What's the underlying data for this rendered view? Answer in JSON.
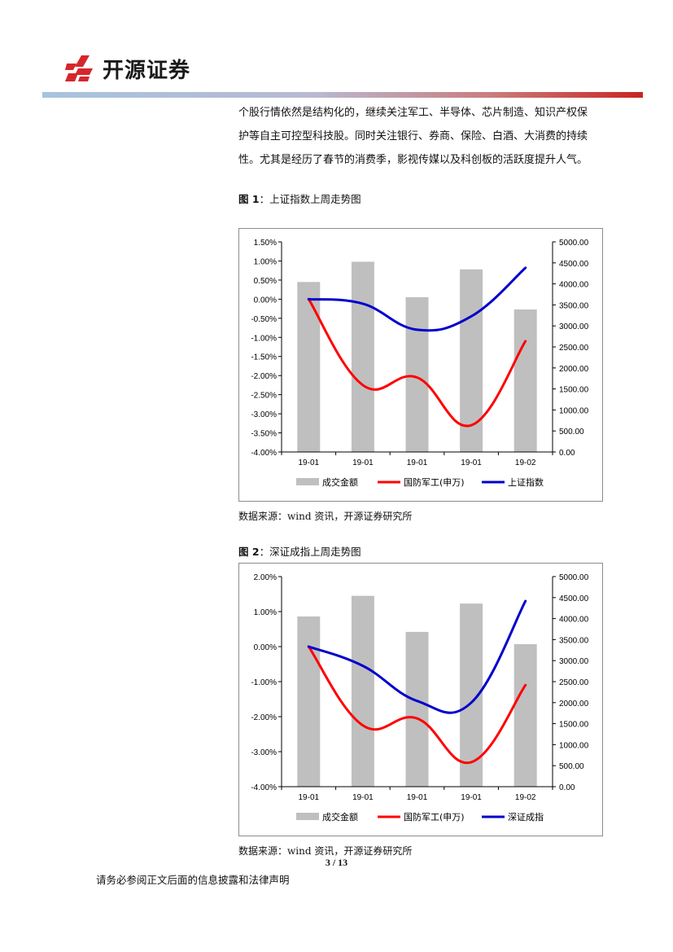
{
  "header": {
    "company": "开源证券",
    "colors": {
      "logo_red": "#d6262b",
      "bar_left": "#a7c3de",
      "bar_right": "#c9241f"
    }
  },
  "body": {
    "lines": [
      "个股行情依然是结构化的，继续关注军工、半导体、芯片制造、知识产权保",
      "护等自主可控型科技股。同时关注银行、券商、保险、白酒、大消费的持续",
      "性。尤其是经历了春节的消费季，影视传媒以及科创板的活跃度提升人气。"
    ]
  },
  "figure1": {
    "label": "图 1",
    "title": "：上证指数上周走势图",
    "source": "数据来源：wind 资讯，开源证券研究所"
  },
  "figure2": {
    "label": "图 2",
    "title": "：深证成指上周走势图",
    "source": "数据来源：wind 资讯，开源证券研究所"
  },
  "footer": {
    "page": "3 / 13",
    "disclaimer": "请务必参阅正文后面的信息披露和法律声明"
  },
  "chart_data": [
    {
      "type": "bar",
      "categories": [
        "19-01",
        "19-01",
        "19-01",
        "19-01",
        "19-02"
      ],
      "left_axis": {
        "ticks": [
          "1.50%",
          "1.00%",
          "0.50%",
          "0.00%",
          "-0.50%",
          "-1.00%",
          "-1.50%",
          "-2.00%",
          "-2.50%",
          "-3.00%",
          "-3.50%",
          "-4.00%"
        ],
        "ylim": [
          -4.0,
          1.5
        ]
      },
      "right_axis": {
        "ticks": [
          "5000.00",
          "4500.00",
          "4000.00",
          "3500.00",
          "3000.00",
          "2500.00",
          "2000.00",
          "1500.00",
          "1000.00",
          "500.00",
          "0.00"
        ],
        "ylim": [
          0,
          5000
        ]
      },
      "series": [
        {
          "name": "成交金额",
          "kind": "bar",
          "axis": "left",
          "color": "#bfbfbf",
          "values": [
            0.45,
            0.98,
            0.05,
            0.78,
            -0.27
          ]
        },
        {
          "name": "国防军工(申万)",
          "kind": "line",
          "axis": "left",
          "color": "#ff0000",
          "values": [
            0.0,
            -2.25,
            -2.05,
            -3.3,
            -1.1
          ]
        },
        {
          "name": "上证指数",
          "kind": "line",
          "axis": "left",
          "color": "#0000cc",
          "values": [
            0.0,
            -0.12,
            -0.8,
            -0.45,
            0.82
          ]
        }
      ],
      "legend": "bottom"
    },
    {
      "type": "bar",
      "categories": [
        "19-01",
        "19-01",
        "19-01",
        "19-01",
        "19-02"
      ],
      "left_axis": {
        "ticks": [
          "2.00%",
          "1.00%",
          "0.00%",
          "-1.00%",
          "-2.00%",
          "-3.00%",
          "-4.00%"
        ],
        "ylim": [
          -4.0,
          2.0
        ]
      },
      "right_axis": {
        "ticks": [
          "5000.00",
          "4500.00",
          "4000.00",
          "3500.00",
          "3000.00",
          "2500.00",
          "2000.00",
          "1500.00",
          "1000.00",
          "500.00",
          "0.00"
        ],
        "ylim": [
          0,
          5000
        ]
      },
      "series": [
        {
          "name": "成交金额",
          "kind": "bar",
          "axis": "left",
          "color": "#bfbfbf",
          "values": [
            0.86,
            1.45,
            0.42,
            1.23,
            0.07
          ]
        },
        {
          "name": "国防军工(申万)",
          "kind": "line",
          "axis": "left",
          "color": "#ff0000",
          "values": [
            0.0,
            -2.25,
            -2.05,
            -3.3,
            -1.1
          ]
        },
        {
          "name": "深证成指",
          "kind": "line",
          "axis": "left",
          "color": "#0000cc",
          "values": [
            0.0,
            -0.55,
            -1.55,
            -1.6,
            1.3
          ]
        }
      ],
      "legend": "bottom"
    }
  ]
}
